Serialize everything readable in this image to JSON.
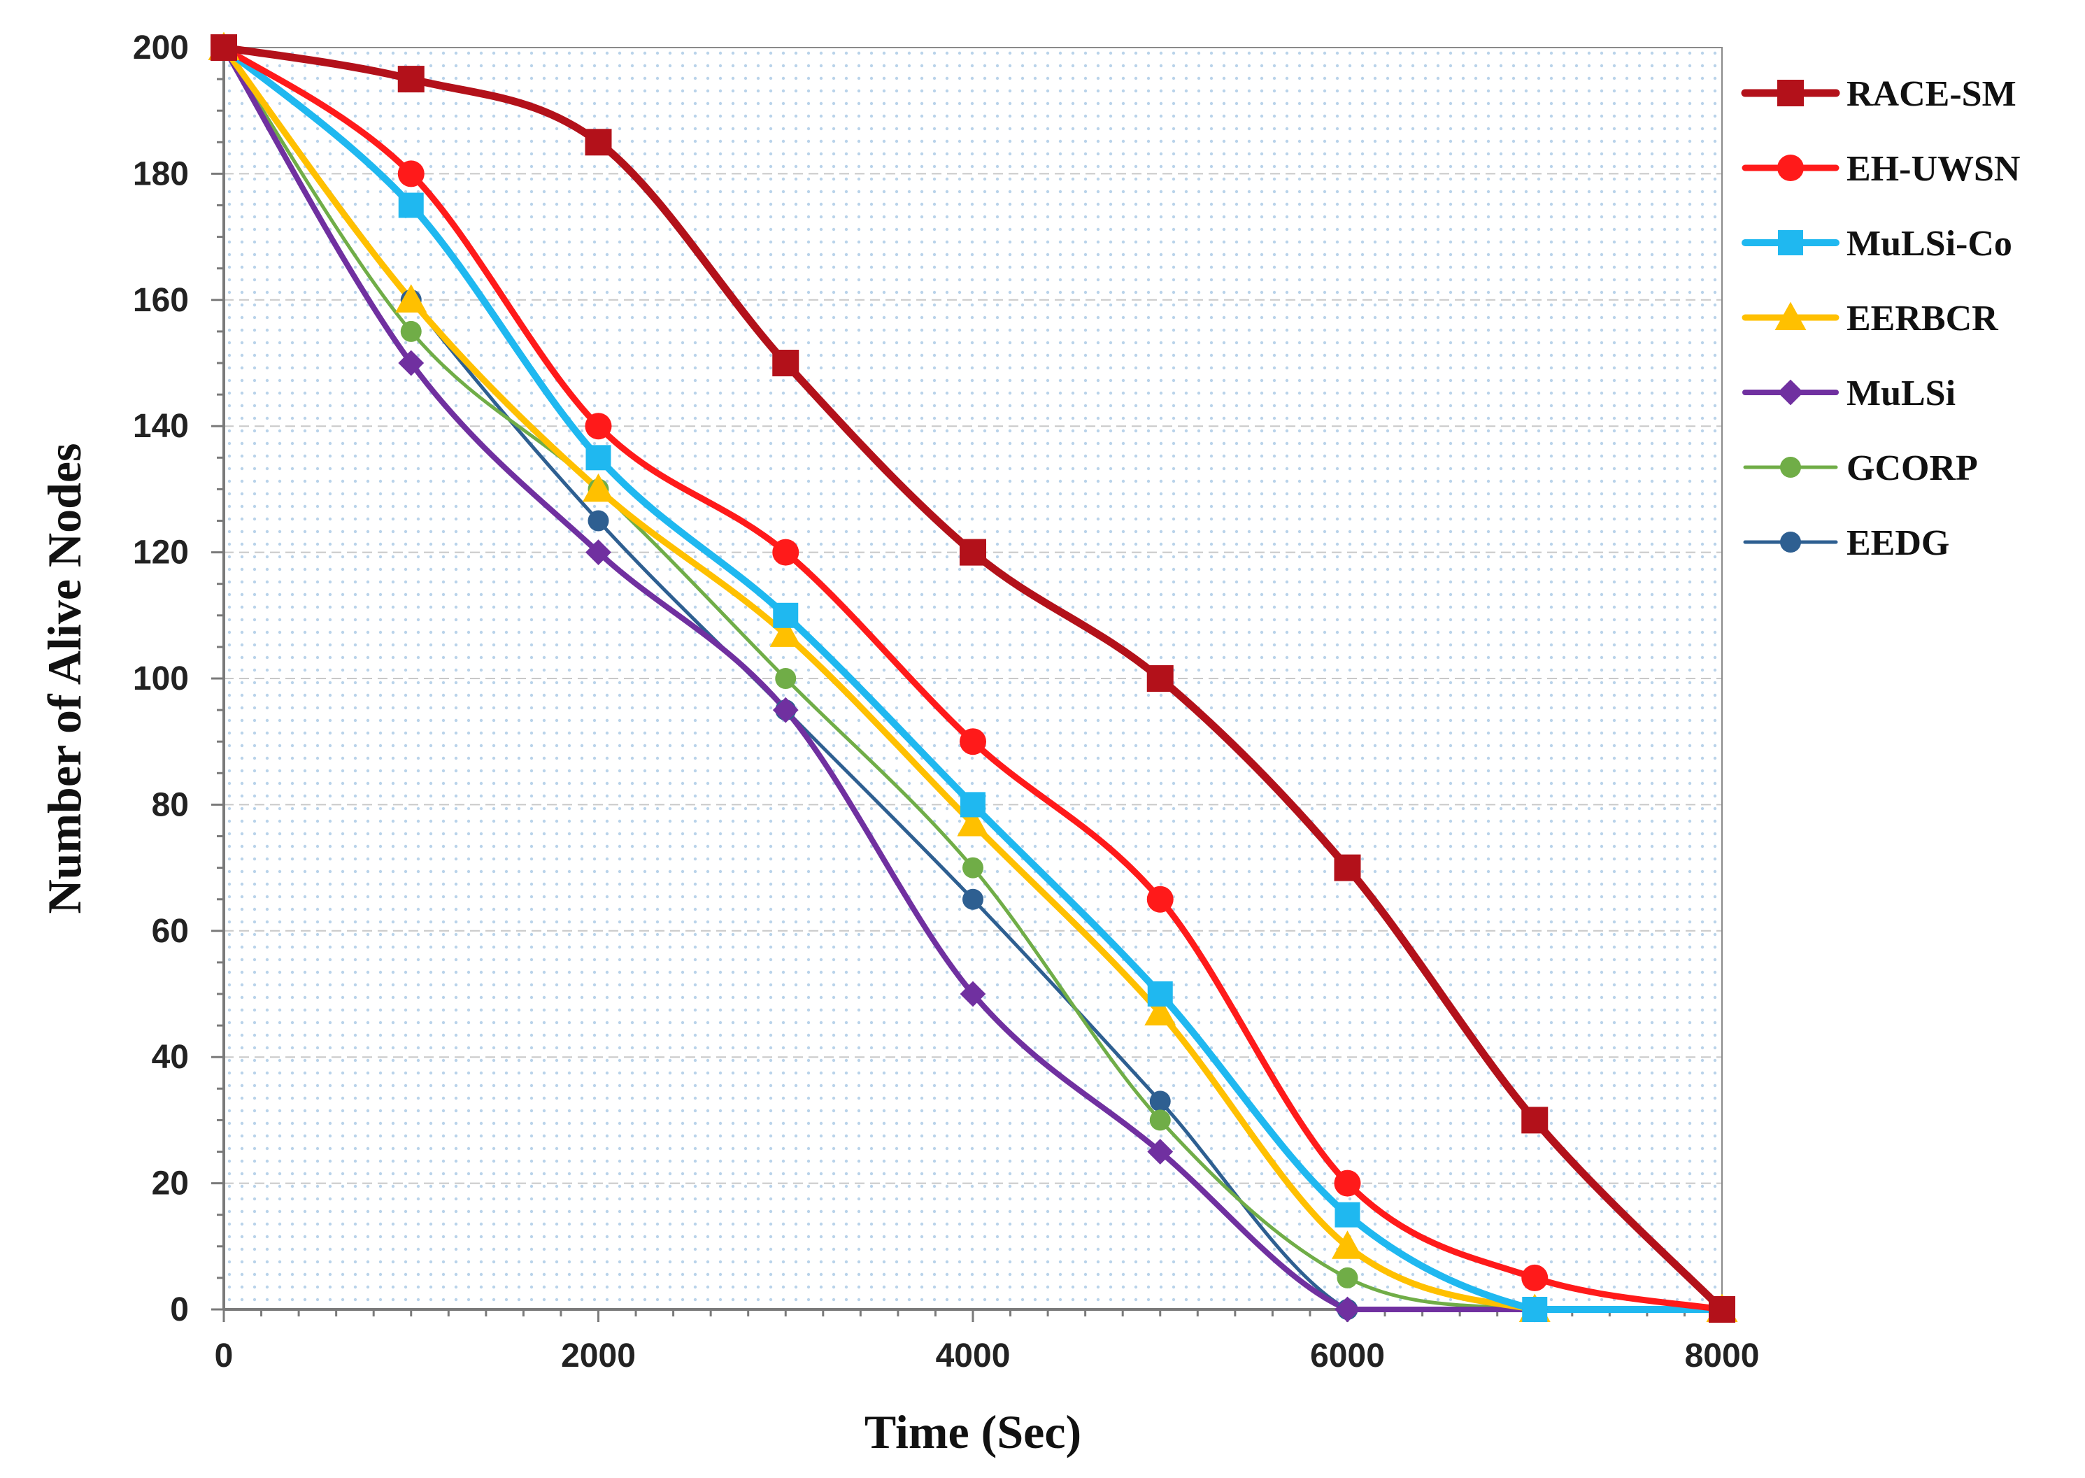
{
  "chart_data": {
    "type": "line",
    "title": "",
    "xlabel": "Time (Sec)",
    "ylabel": "Number of Alive Nodes",
    "xlim": [
      0,
      8000
    ],
    "ylim": [
      0,
      200
    ],
    "x_ticks": [
      0,
      2000,
      4000,
      6000,
      8000
    ],
    "y_ticks": [
      0,
      20,
      40,
      60,
      80,
      100,
      120,
      140,
      160,
      180,
      200
    ],
    "x_tick_labels": [
      "0",
      "2000",
      "4000",
      "6000",
      "8000"
    ],
    "y_tick_labels": [
      "0",
      "20",
      "40",
      "60",
      "80",
      "100",
      "120",
      "140",
      "160",
      "180",
      "200"
    ],
    "grid": true,
    "legend_position": "right",
    "x": [
      0,
      1000,
      2000,
      3000,
      4000,
      5000,
      6000,
      7000,
      8000
    ],
    "series": [
      {
        "name": "RACE-SM",
        "color": "#b3111a",
        "marker": "square",
        "values": [
          200,
          195,
          185,
          150,
          120,
          100,
          70,
          30,
          0
        ]
      },
      {
        "name": "EH-UWSN",
        "color": "#ff1a1a",
        "marker": "circle",
        "values": [
          200,
          180,
          140,
          120,
          90,
          65,
          20,
          5,
          0
        ]
      },
      {
        "name": "MuLSi-Co",
        "color": "#1fb8f0",
        "marker": "square",
        "values": [
          200,
          175,
          135,
          110,
          80,
          50,
          15,
          0,
          0
        ]
      },
      {
        "name": "EERBCR",
        "color": "#ffc000",
        "marker": "triangle",
        "values": [
          200,
          160,
          130,
          107,
          77,
          47,
          10,
          0,
          0
        ]
      },
      {
        "name": "MuLSi",
        "color": "#7030a0",
        "marker": "diamond",
        "values": [
          200,
          150,
          120,
          95,
          50,
          25,
          0,
          0,
          0
        ]
      },
      {
        "name": "GCORP",
        "color": "#70ad47",
        "marker": "circle",
        "values": [
          200,
          155,
          130,
          100,
          70,
          30,
          5,
          0,
          0
        ]
      },
      {
        "name": "EEDG",
        "color": "#2e5f91",
        "marker": "circle",
        "values": [
          200,
          160,
          125,
          95,
          65,
          33,
          0,
          0,
          0
        ]
      }
    ]
  }
}
